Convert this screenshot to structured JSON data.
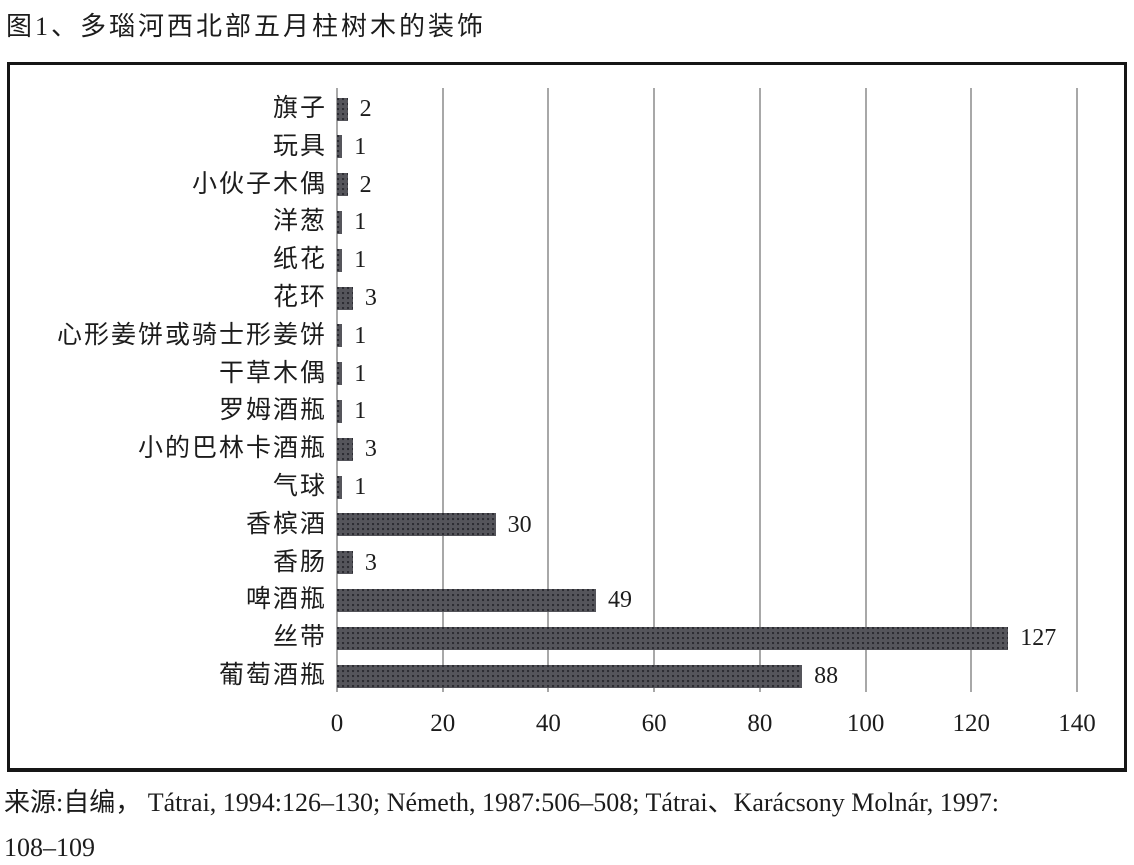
{
  "page": {
    "title": "图1、多瑙河西北部五月柱树木的装饰",
    "source": {
      "line1": "来源:自编， Tátrai, 1994:126–130; Németh, 1987:506–508; Tátrai、Karácsony Molnár, 1997:",
      "line2": "108–109"
    }
  },
  "colors": {
    "bar_fill": "#55555b",
    "bar_dot": "#2b2b31",
    "gridline": "#a8a8a8",
    "frame_border": "#161616",
    "text": "#1c1c1c"
  },
  "chart_data": {
    "type": "bar",
    "orientation": "horizontal",
    "title": "图1、多瑙河西北部五月柱树木的装饰",
    "categories": [
      "旗子",
      "玩具",
      "小伙子木偶",
      "洋葱",
      "纸花",
      "花环",
      "心形姜饼或骑士形姜饼",
      "干草木偶",
      "罗姆酒瓶",
      "小的巴林卡酒瓶",
      "气球",
      "香槟酒",
      "香肠",
      "啤酒瓶",
      "丝带",
      "葡萄酒瓶"
    ],
    "values": [
      2,
      1,
      2,
      1,
      1,
      3,
      1,
      1,
      1,
      3,
      1,
      30,
      3,
      49,
      127,
      88
    ],
    "xlabel": "",
    "ylabel": "",
    "xlim": [
      0,
      140
    ],
    "xticks": [
      0,
      20,
      40,
      60,
      80,
      100,
      120,
      140
    ],
    "grid": true,
    "legend": false,
    "data_labels": true
  }
}
